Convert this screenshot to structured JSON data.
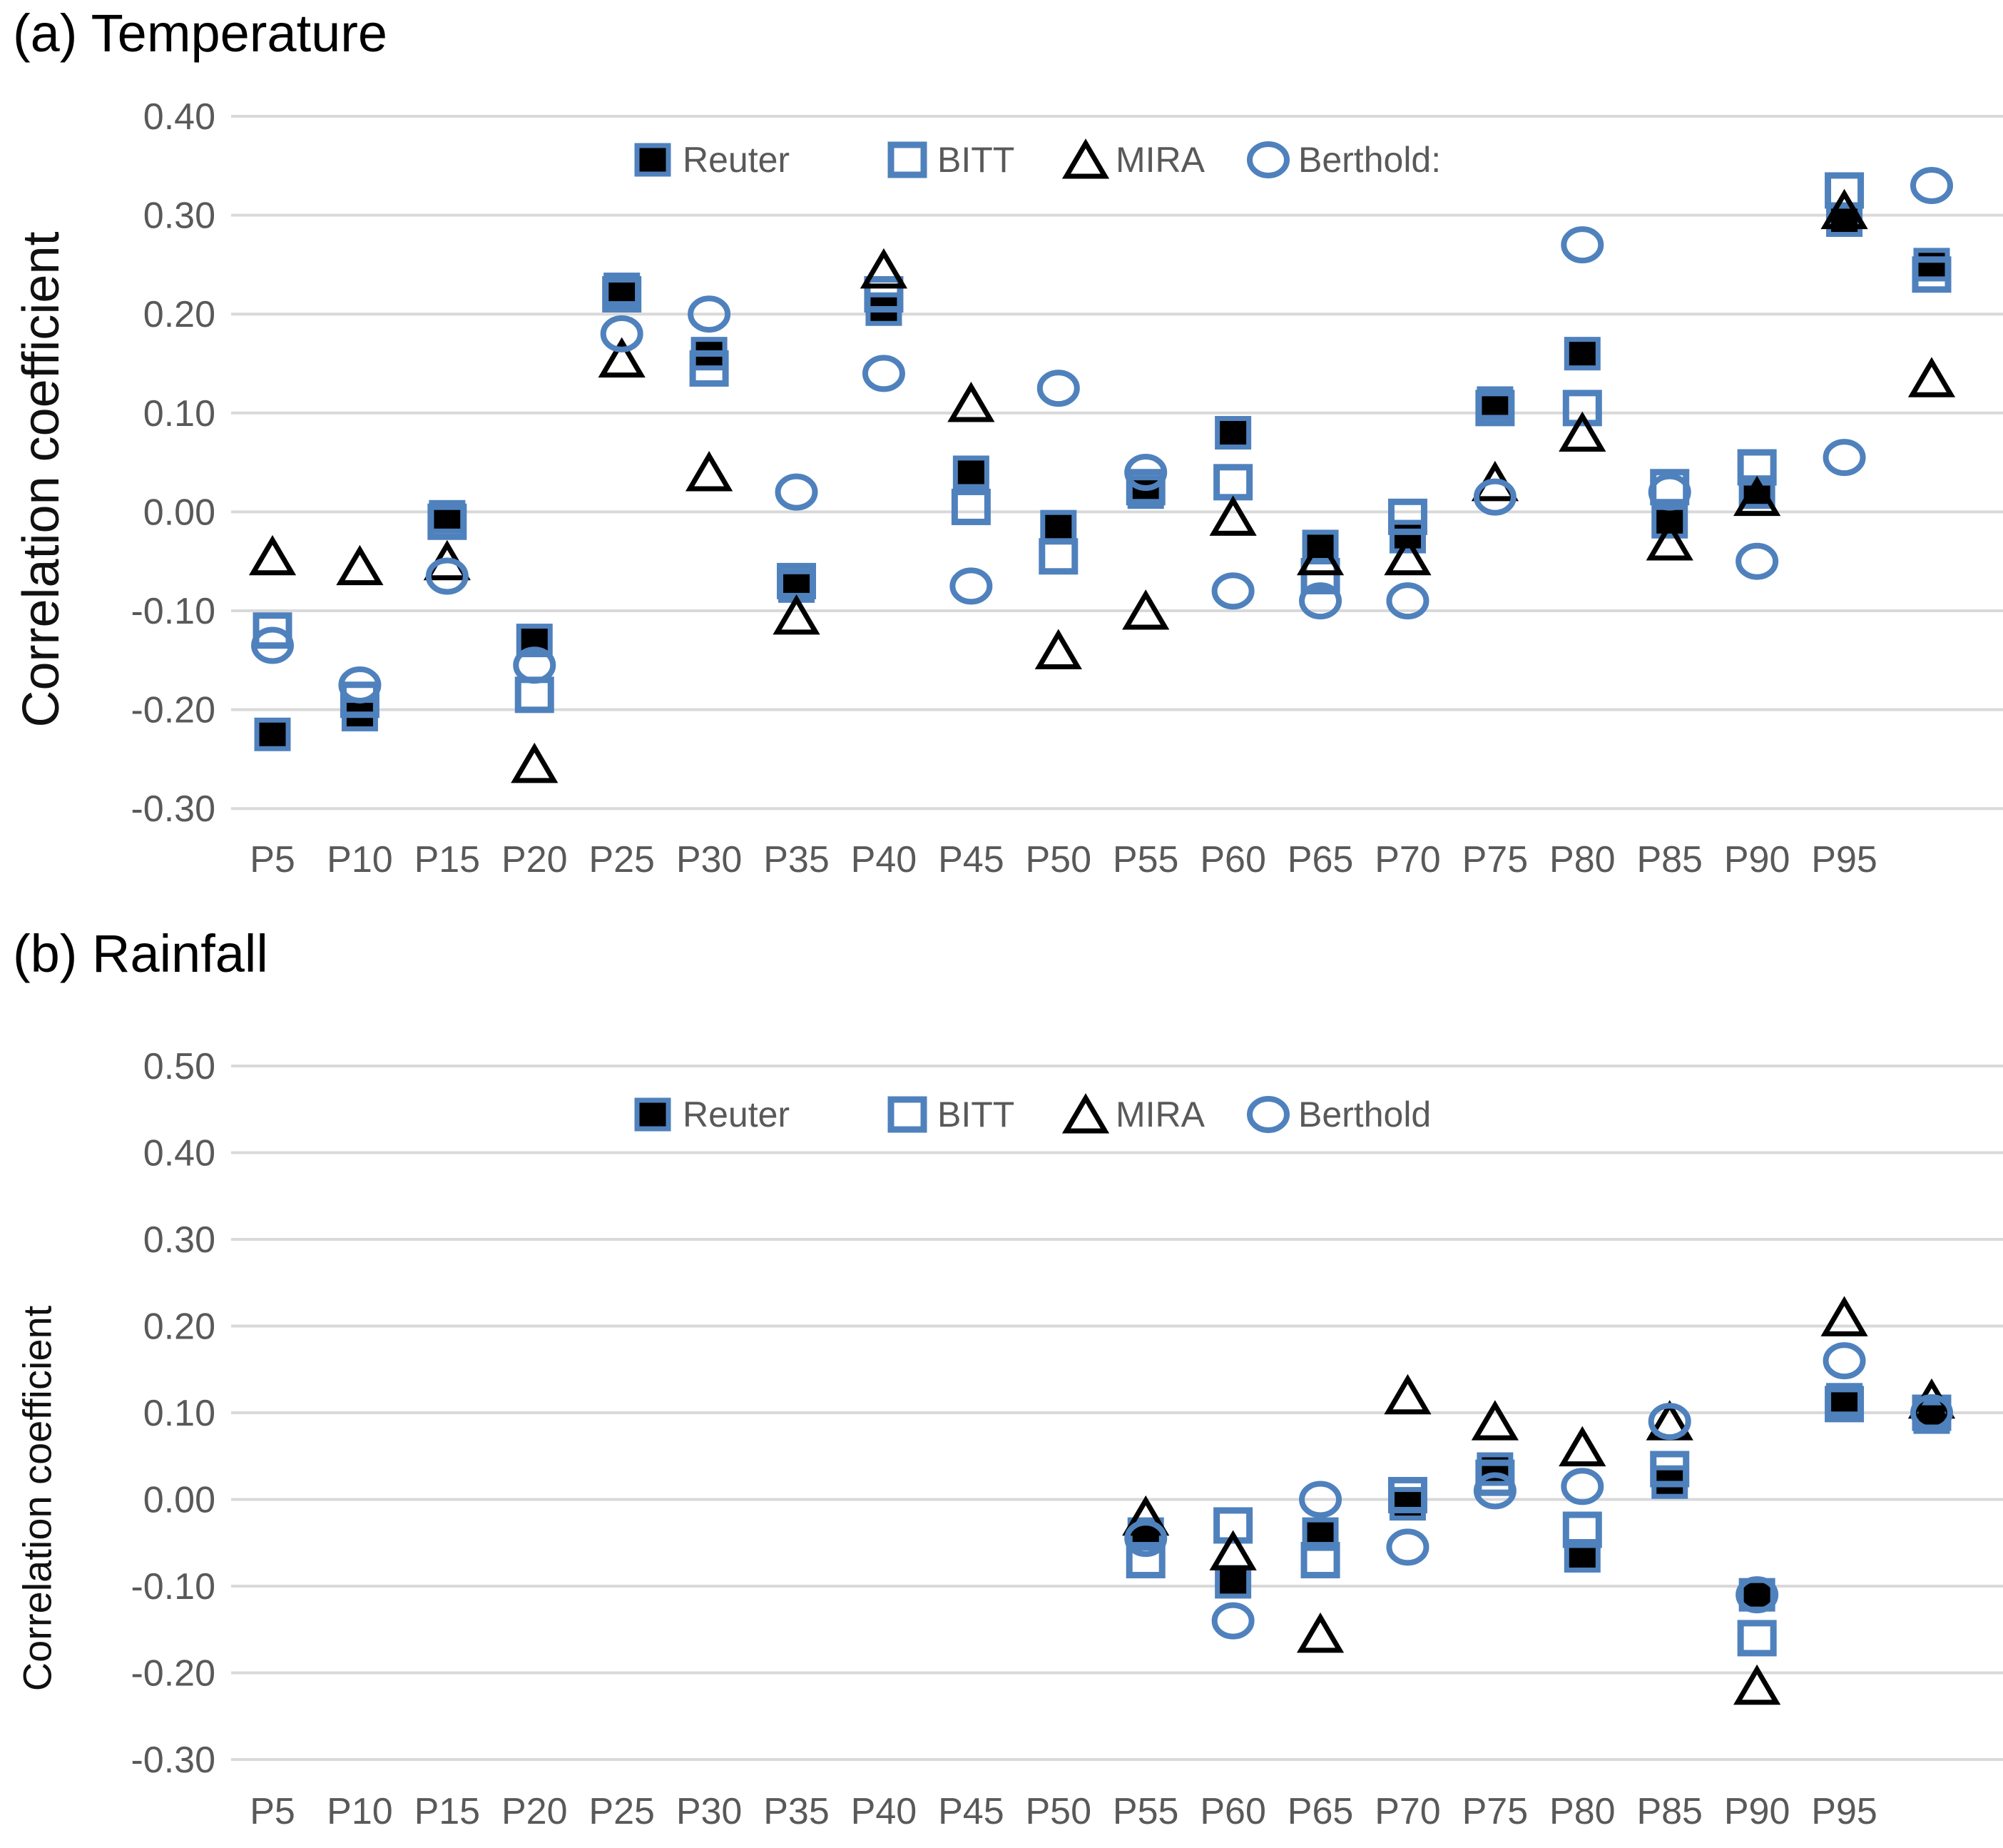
{
  "figure": {
    "colors": {
      "blue": "#4F81BD",
      "black": "#000000",
      "gridline": "#D9D9D9",
      "tick_text": "#595959",
      "title_text": "#000000"
    }
  },
  "chart_data": [
    {
      "type": "scatter",
      "panel": "a",
      "title": "(a) Temperature",
      "ylabel": "Correlation coefficient",
      "xlabel": "",
      "ylim": [
        -0.3,
        0.4
      ],
      "grid": "horizontal",
      "legend_position": "top-center",
      "y_ticks": [
        "0.40",
        "0.30",
        "0.20",
        "0.10",
        "0.00",
        "-0.10",
        "-0.20",
        "-0.30"
      ],
      "categories": [
        "P5",
        "P10",
        "P15",
        "P20",
        "P25",
        "P30",
        "P35",
        "P40",
        "P45",
        "P50",
        "P55",
        "P60",
        "P65",
        "P70",
        "P75",
        "P80",
        "P85",
        "P90",
        "P95",
        ""
      ],
      "legend": [
        "Reuter",
        "BITT",
        "MIRA",
        "Berthold:"
      ],
      "series": [
        {
          "name": "Reuter",
          "marker": "filled-square",
          "values": [
            -0.225,
            -0.205,
            -0.005,
            -0.13,
            0.225,
            0.16,
            -0.075,
            0.205,
            0.04,
            -0.015,
            0.02,
            0.08,
            -0.035,
            -0.025,
            0.11,
            0.16,
            -0.01,
            0.02,
            0.295,
            0.25
          ]
        },
        {
          "name": "BITT",
          "marker": "open-square",
          "values": [
            -0.12,
            -0.19,
            -0.01,
            -0.185,
            0.22,
            0.145,
            -0.07,
            0.22,
            0.005,
            -0.045,
            0.025,
            0.03,
            -0.065,
            -0.005,
            0.105,
            0.105,
            0.025,
            0.045,
            0.325,
            0.24
          ]
        },
        {
          "name": "MIRA",
          "marker": "open-triangle",
          "values": [
            -0.045,
            -0.055,
            -0.05,
            -0.255,
            0.155,
            0.04,
            -0.105,
            0.245,
            0.11,
            -0.14,
            -0.1,
            -0.005,
            -0.045,
            -0.045,
            0.03,
            0.08,
            -0.03,
            0.015,
            0.305,
            0.135
          ]
        },
        {
          "name": "Berthold",
          "marker": "open-circle",
          "values": [
            -0.135,
            -0.175,
            -0.065,
            -0.155,
            0.18,
            0.2,
            0.02,
            0.14,
            -0.075,
            0.125,
            0.04,
            -0.08,
            -0.09,
            -0.09,
            0.015,
            0.27,
            0.02,
            -0.05,
            0.055,
            0.33
          ]
        }
      ]
    },
    {
      "type": "scatter",
      "panel": "b",
      "title": "(b) Rainfall",
      "ylabel": "Correlation coefficient",
      "xlabel": "",
      "ylim": [
        -0.3,
        0.5
      ],
      "grid": "horizontal",
      "legend_position": "top-center",
      "y_ticks": [
        "0.50",
        "0.40",
        "0.30",
        "0.20",
        "0.10",
        "0.00",
        "-0.10",
        "-0.20",
        "-0.30"
      ],
      "categories": [
        "P5",
        "P10",
        "P15",
        "P20",
        "P25",
        "P30",
        "P35",
        "P40",
        "P45",
        "P50",
        "P55",
        "P60",
        "P65",
        "P70",
        "P75",
        "P80",
        "P85",
        "P90",
        "P95",
        ""
      ],
      "legend": [
        "Reuter",
        "BITT",
        "MIRA",
        "Berthold"
      ],
      "series": [
        {
          "name": "Reuter",
          "marker": "filled-square",
          "values": [
            null,
            null,
            null,
            null,
            null,
            null,
            null,
            null,
            null,
            null,
            -0.04,
            -0.095,
            -0.04,
            -0.005,
            0.035,
            -0.065,
            0.02,
            -0.11,
            0.115,
            0.095
          ]
        },
        {
          "name": "BITT",
          "marker": "open-square",
          "values": [
            null,
            null,
            null,
            null,
            null,
            null,
            null,
            null,
            null,
            null,
            -0.07,
            -0.03,
            -0.07,
            0.005,
            0.025,
            -0.035,
            0.035,
            -0.16,
            0.11,
            0.1
          ]
        },
        {
          "name": "MIRA",
          "marker": "open-triangle",
          "values": [
            null,
            null,
            null,
            null,
            null,
            null,
            null,
            null,
            null,
            null,
            -0.02,
            -0.06,
            -0.155,
            0.12,
            0.09,
            0.06,
            0.09,
            -0.215,
            0.21,
            0.115
          ]
        },
        {
          "name": "Berthold",
          "marker": "open-circle",
          "values": [
            null,
            null,
            null,
            null,
            null,
            null,
            null,
            null,
            null,
            null,
            -0.045,
            -0.14,
            0.0,
            -0.055,
            0.01,
            0.015,
            0.09,
            -0.11,
            0.16,
            0.1
          ]
        }
      ]
    }
  ]
}
